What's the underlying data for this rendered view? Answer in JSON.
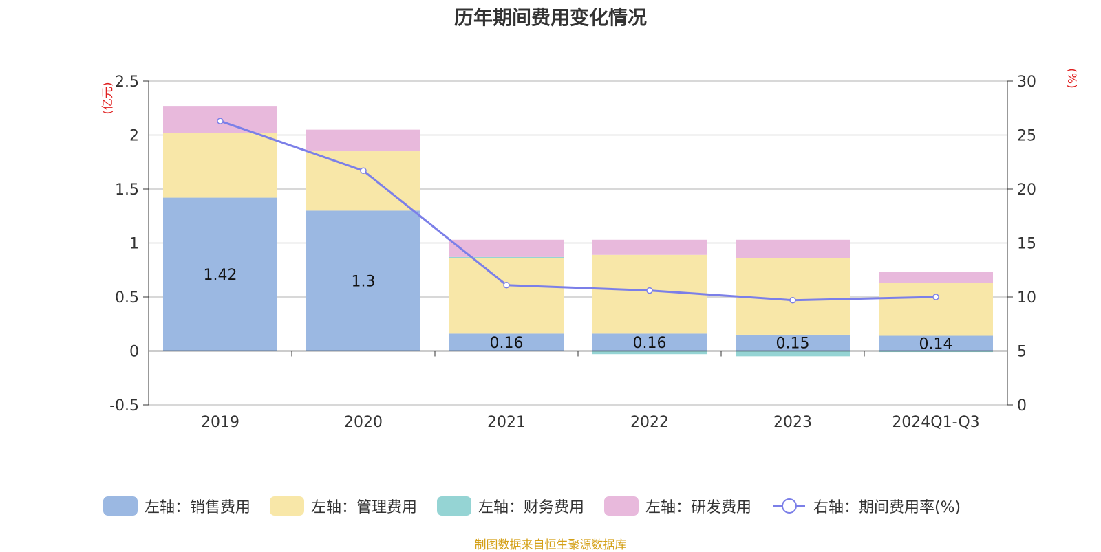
{
  "chart_data": {
    "type": "bar",
    "stacked": true,
    "title": "历年期间费用变化情况",
    "categories": [
      "2019",
      "2020",
      "2021",
      "2022",
      "2023",
      "2024Q1-Q3"
    ],
    "y_left": {
      "unit": "(亿元)",
      "min": -0.5,
      "max": 2.5,
      "ticks": [
        -0.5,
        0,
        0.5,
        1,
        1.5,
        2,
        2.5
      ],
      "tick_labels": [
        "-0.5",
        "0",
        "0.5",
        "1",
        "1.5",
        "2",
        "2.5"
      ]
    },
    "y_right": {
      "unit": "(%)",
      "min": 0,
      "max": 30,
      "ticks": [
        0,
        5,
        10,
        15,
        20,
        25,
        30
      ],
      "tick_labels": [
        "0",
        "5",
        "10",
        "15",
        "20",
        "25",
        "30"
      ]
    },
    "series": [
      {
        "name": "左轴：销售费用",
        "color": "#9bb8e2",
        "axis": "left",
        "values": [
          1.42,
          1.3,
          0.16,
          0.16,
          0.15,
          0.14
        ],
        "labels": [
          "1.42",
          "1.3",
          "0.16",
          "0.16",
          "0.15",
          "0.14"
        ]
      },
      {
        "name": "左轴：管理费用",
        "color": "#f8e7a8",
        "axis": "left",
        "values": [
          0.6,
          0.55,
          0.7,
          0.73,
          0.71,
          0.49
        ]
      },
      {
        "name": "左轴：财务费用",
        "color": "#95d4d4",
        "axis": "left",
        "values": [
          0.0,
          0.0,
          0.01,
          -0.03,
          -0.05,
          -0.01
        ]
      },
      {
        "name": "左轴：研发费用",
        "color": "#e8b9dc",
        "axis": "left",
        "values": [
          0.25,
          0.2,
          0.16,
          0.14,
          0.17,
          0.1
        ]
      },
      {
        "name": "右轴：期间费用率(%)",
        "color": "#7b7fe8",
        "axis": "right",
        "type": "line",
        "values": [
          26.3,
          21.7,
          11.1,
          10.6,
          9.7,
          10.0
        ]
      }
    ],
    "grid": true,
    "legend_position": "bottom"
  },
  "footer": {
    "source": "制图数据来自恒生聚源数据库"
  }
}
